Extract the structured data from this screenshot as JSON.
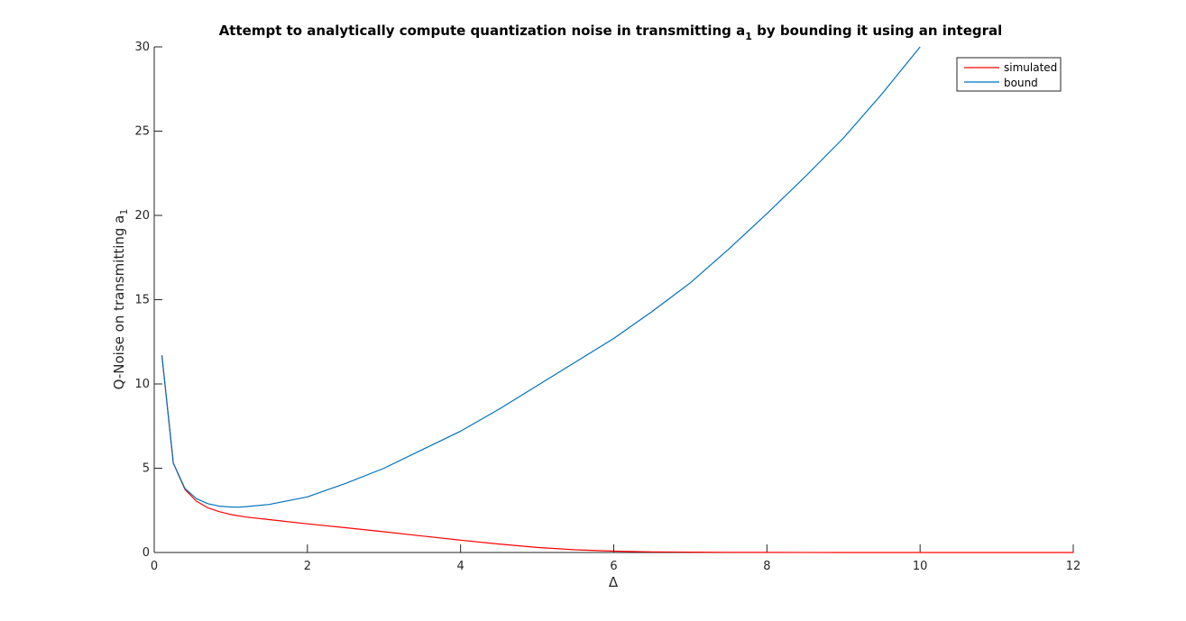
{
  "chart_data": {
    "type": "line",
    "title_main": "Attempt to analytically compute quantization noise in transmitting a",
    "title_sub": "1",
    "title_rest": " by bounding it using an integral",
    "xlabel": "Δ",
    "ylabel_main": "Q-Noise on transmitting a",
    "ylabel_sub": "1",
    "xlim": [
      0,
      12
    ],
    "ylim": [
      0,
      30
    ],
    "xticks": [
      "0",
      "2",
      "4",
      "6",
      "8",
      "10",
      "12"
    ],
    "yticks": [
      "0",
      "5",
      "10",
      "15",
      "20",
      "25",
      "30"
    ],
    "grid": false,
    "legend_position": "top-right",
    "series": [
      {
        "name": "simulated",
        "color": "#ff0000",
        "x": [
          0.1,
          0.25,
          0.4,
          0.55,
          0.7,
          0.85,
          1.0,
          1.2,
          1.5,
          2.0,
          2.5,
          3.0,
          3.5,
          4.0,
          4.5,
          5.0,
          5.5,
          6.0,
          6.5,
          7.0,
          7.5,
          8.0,
          9.0,
          10.0,
          11.0,
          12.0
        ],
        "y": [
          11.7,
          5.3,
          3.75,
          3.05,
          2.65,
          2.42,
          2.25,
          2.1,
          1.95,
          1.7,
          1.47,
          1.23,
          0.98,
          0.73,
          0.5,
          0.3,
          0.16,
          0.08,
          0.04,
          0.02,
          0.01,
          0.005,
          0.0,
          0.0,
          0.0,
          0.0
        ]
      },
      {
        "name": "bound",
        "color": "#0072bd",
        "x": [
          0.1,
          0.25,
          0.4,
          0.55,
          0.7,
          0.85,
          1.0,
          1.1,
          1.2,
          1.5,
          2.0,
          2.5,
          3.0,
          3.5,
          4.0,
          4.5,
          5.0,
          5.5,
          6.0,
          6.5,
          7.0,
          7.5,
          8.0,
          8.5,
          9.0,
          9.5,
          10.0
        ],
        "y": [
          11.7,
          5.3,
          3.8,
          3.2,
          2.9,
          2.75,
          2.7,
          2.69,
          2.72,
          2.85,
          3.3,
          4.1,
          5.0,
          6.1,
          7.2,
          8.5,
          9.9,
          11.3,
          12.7,
          14.3,
          16.0,
          18.0,
          20.1,
          22.3,
          24.6,
          27.2,
          30.0
        ]
      }
    ]
  }
}
